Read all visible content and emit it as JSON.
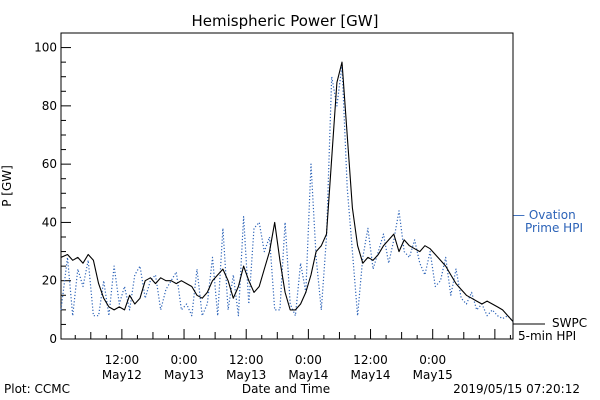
{
  "chart_data": {
    "type": "line",
    "title": "Hemispheric Power [GW]",
    "ylabel": "P [GW]",
    "xlabel": "Date and Time",
    "ylim": [
      0,
      105
    ],
    "yticks": [
      0,
      20,
      40,
      60,
      80,
      100
    ],
    "xlim": [
      0.25,
      87.5
    ],
    "xticks": [
      {
        "hour": 12,
        "line1": "12:00",
        "line2": "May12"
      },
      {
        "hour": 24,
        "line1": "0:00",
        "line2": "May13"
      },
      {
        "hour": 36,
        "line1": "12:00",
        "line2": "May13"
      },
      {
        "hour": 48,
        "line1": "0:00",
        "line2": "May14"
      },
      {
        "hour": 60,
        "line1": "12:00",
        "line2": "May14"
      },
      {
        "hour": 72,
        "line1": "0:00",
        "line2": "May15"
      }
    ],
    "x_units": "hours since 2019-05-12 00:00 UT",
    "grid": false,
    "series": [
      {
        "name": "SWPC",
        "color": "#000000",
        "style": "solid",
        "x": [
          0.25,
          1.5,
          2.5,
          3.5,
          4.5,
          5.5,
          6.5,
          7.5,
          8.5,
          9.5,
          10.5,
          11.5,
          12.5,
          13.5,
          14.5,
          15.5,
          16.5,
          17.5,
          18.5,
          19.5,
          20.5,
          21.5,
          22.5,
          23.5,
          24.5,
          25.5,
          26.5,
          27.5,
          28.5,
          29.5,
          30.5,
          31.5,
          32.5,
          33.5,
          34.5,
          35.5,
          36.5,
          37.5,
          38.5,
          39.5,
          40.5,
          41.5,
          42.5,
          43.5,
          44.5,
          45.5,
          46.5,
          47.5,
          48.5,
          49.5,
          50.5,
          51.5,
          52.5,
          53.5,
          54.5,
          55.5,
          56.5,
          57.5,
          58.5,
          59.5,
          60.5,
          61.5,
          62.5,
          63.5,
          64.5,
          65.5,
          66.5,
          67.5,
          68.5,
          69.5,
          70.5,
          71.5,
          72.5,
          73.5,
          74.5,
          75.5,
          76.5,
          77.5,
          78.5,
          79.5,
          80.5,
          81.5,
          82.5,
          83.5,
          84.5,
          85.5,
          86.5,
          87.5
        ],
        "y": [
          28,
          29,
          27,
          28,
          26,
          29,
          27,
          19,
          14,
          11,
          10,
          11,
          10,
          15,
          12,
          14,
          20,
          21,
          19,
          21,
          20,
          20,
          19,
          20,
          19,
          18,
          15,
          14,
          16,
          20,
          22,
          24,
          20,
          14,
          18,
          25,
          20,
          16,
          18,
          24,
          30,
          40,
          27,
          16,
          10,
          10,
          12,
          16,
          22,
          30,
          32,
          36,
          62,
          88,
          95,
          70,
          45,
          32,
          26,
          28,
          27,
          29,
          32,
          34,
          36,
          30,
          34,
          32,
          31,
          30,
          32,
          31,
          29,
          27,
          25,
          22,
          19,
          17,
          15,
          14,
          13,
          12,
          13,
          12,
          11,
          10,
          8,
          6
        ]
      },
      {
        "name": "Ovation Prime HPI",
        "color": "#2c63b8",
        "style": "dotted",
        "x": [
          0.25,
          1.5,
          2.5,
          3.5,
          4.5,
          5.5,
          6.5,
          7.5,
          8.5,
          9.5,
          10.5,
          11.5,
          12.5,
          13.5,
          14.5,
          15.5,
          16.5,
          17.5,
          18.5,
          19.5,
          20.5,
          21.5,
          22.5,
          23.5,
          24.5,
          25.5,
          26.5,
          27.5,
          28.5,
          29.5,
          30.5,
          31.5,
          32.5,
          33.5,
          34.5,
          35.5,
          36.5,
          37.5,
          38.5,
          39.5,
          40.5,
          41.5,
          42.5,
          43.5,
          44.5,
          45.5,
          46.5,
          47.5,
          48.5,
          49.5,
          50.5,
          51.5,
          52.5,
          53.5,
          54.5,
          55.5,
          56.5,
          57.5,
          58.5,
          59.5,
          60.5,
          61.5,
          62.5,
          63.5,
          64.5,
          65.5,
          66.5,
          67.5,
          68.5,
          69.5,
          70.5,
          71.5,
          72.5,
          73.5,
          74.5,
          75.5,
          76.5,
          77.5,
          78.5,
          79.5,
          80.5,
          81.5,
          82.5,
          83.5,
          84.5,
          85.5,
          86.5,
          87.5
        ],
        "y": [
          10,
          28,
          8,
          24,
          18,
          27,
          8,
          8,
          20,
          8,
          25,
          12,
          18,
          10,
          22,
          25,
          14,
          20,
          22,
          10,
          17,
          20,
          23,
          10,
          12,
          8,
          24,
          8,
          12,
          28,
          8,
          38,
          10,
          22,
          8,
          42,
          12,
          38,
          40,
          30,
          35,
          10,
          10,
          40,
          12,
          8,
          26,
          16,
          60,
          28,
          10,
          35,
          90,
          80,
          94,
          52,
          30,
          8,
          28,
          38,
          24,
          30,
          36,
          26,
          34,
          44,
          30,
          28,
          34,
          26,
          22,
          30,
          18,
          20,
          28,
          15,
          24,
          14,
          12,
          16,
          10,
          12,
          8,
          10,
          8,
          7,
          8,
          6
        ]
      }
    ],
    "legend": {
      "placement": "right",
      "entries": [
        {
          "text1": "— Ovation",
          "text2": "Prime HPI",
          "color": "#2c63b8"
        },
        {
          "text1": "SWPC",
          "text2": "5-min HPI",
          "color": "#000000"
        }
      ]
    }
  },
  "footer": {
    "left": "Plot: CCMC",
    "center": "Date and Time",
    "right": "2019/05/15 07:20:12"
  }
}
